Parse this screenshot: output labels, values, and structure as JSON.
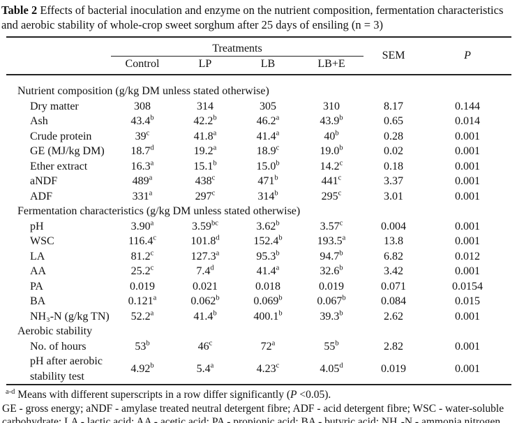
{
  "title": {
    "label": "Table 2",
    "text": " Effects of bacterial inoculation and enzyme on the nutrient composition, fermentation characteristics and aerobic stability of whole-crop sweet sorghum after 25 days of ensiling (n = 3)"
  },
  "table": {
    "group_header": "Treatments",
    "columns": [
      "Control",
      "LP",
      "LB",
      "LB+E"
    ],
    "sem_header": "SEM",
    "p_header": "P",
    "rows": [
      {
        "type": "section",
        "label": "Nutrient composition (g/kg DM unless stated otherwise)"
      },
      {
        "type": "data",
        "label": "Dry matter",
        "values": [
          {
            "v": "308"
          },
          {
            "v": "314"
          },
          {
            "v": "305"
          },
          {
            "v": "310"
          },
          {
            "v": "8.17"
          },
          {
            "v": "0.144"
          }
        ]
      },
      {
        "type": "data",
        "label": "Ash",
        "values": [
          {
            "v": "43.4",
            "s": "b"
          },
          {
            "v": "42.2",
            "s": "b"
          },
          {
            "v": "46.2",
            "s": "a"
          },
          {
            "v": "43.9",
            "s": "b"
          },
          {
            "v": "0.65"
          },
          {
            "v": "0.014"
          }
        ]
      },
      {
        "type": "data",
        "label": "Crude protein",
        "values": [
          {
            "v": "39",
            "s": "c"
          },
          {
            "v": "41.8",
            "s": "a"
          },
          {
            "v": "41.4",
            "s": "a"
          },
          {
            "v": "40",
            "s": "b"
          },
          {
            "v": "0.28"
          },
          {
            "v": "0.001"
          }
        ]
      },
      {
        "type": "data",
        "label": "GE (MJ/kg DM)",
        "values": [
          {
            "v": "18.7",
            "s": "d"
          },
          {
            "v": "19.2",
            "s": "a"
          },
          {
            "v": "18.9",
            "s": "c"
          },
          {
            "v": "19.0",
            "s": "b"
          },
          {
            "v": "0.02"
          },
          {
            "v": "0.001"
          }
        ]
      },
      {
        "type": "data",
        "label": "Ether extract",
        "values": [
          {
            "v": "16.3",
            "s": "a"
          },
          {
            "v": "15.1",
            "s": "b"
          },
          {
            "v": "15.0",
            "s": "b"
          },
          {
            "v": "14.2",
            "s": "c"
          },
          {
            "v": "0.18"
          },
          {
            "v": "0.001"
          }
        ]
      },
      {
        "type": "data",
        "label": "aNDF",
        "values": [
          {
            "v": "489",
            "s": "a"
          },
          {
            "v": "438",
            "s": "c"
          },
          {
            "v": "471",
            "s": "b"
          },
          {
            "v": "441",
            "s": "c"
          },
          {
            "v": "3.37"
          },
          {
            "v": "0.001"
          }
        ]
      },
      {
        "type": "data",
        "label": "ADF",
        "values": [
          {
            "v": "331",
            "s": "a"
          },
          {
            "v": "297",
            "s": "c"
          },
          {
            "v": "314",
            "s": "b"
          },
          {
            "v": "295",
            "s": "c"
          },
          {
            "v": "3.01"
          },
          {
            "v": "0.001"
          }
        ]
      },
      {
        "type": "section",
        "label": "Fermentation characteristics (g/kg DM unless stated otherwise)"
      },
      {
        "type": "data",
        "label": "pH",
        "values": [
          {
            "v": "3.90",
            "s": "a"
          },
          {
            "v": "3.59",
            "s": "bc"
          },
          {
            "v": "3.62",
            "s": "b"
          },
          {
            "v": "3.57",
            "s": "c"
          },
          {
            "v": "0.004"
          },
          {
            "v": "0.001"
          }
        ]
      },
      {
        "type": "data",
        "label": "WSC",
        "values": [
          {
            "v": "116.4",
            "s": "c"
          },
          {
            "v": "101.8",
            "s": "d"
          },
          {
            "v": "152.4",
            "s": "b"
          },
          {
            "v": "193.5",
            "s": "a"
          },
          {
            "v": "13.8"
          },
          {
            "v": "0.001"
          }
        ]
      },
      {
        "type": "data",
        "label": "LA",
        "values": [
          {
            "v": "81.2",
            "s": "c"
          },
          {
            "v": "127.3",
            "s": "a"
          },
          {
            "v": "95.3",
            "s": "b"
          },
          {
            "v": "94.7",
            "s": "b"
          },
          {
            "v": "6.82"
          },
          {
            "v": "0.012"
          }
        ]
      },
      {
        "type": "data",
        "label": "AA",
        "values": [
          {
            "v": "25.2",
            "s": "c"
          },
          {
            "v": "7.4",
            "s": "d"
          },
          {
            "v": "41.4",
            "s": "a"
          },
          {
            "v": "32.6",
            "s": "b"
          },
          {
            "v": "3.42"
          },
          {
            "v": "0.001"
          }
        ]
      },
      {
        "type": "data",
        "label": "PA",
        "values": [
          {
            "v": "0.019"
          },
          {
            "v": "0.021"
          },
          {
            "v": "0.018"
          },
          {
            "v": "0.019"
          },
          {
            "v": "0.071"
          },
          {
            "v": "0.0154"
          }
        ]
      },
      {
        "type": "data",
        "label": "BA",
        "values": [
          {
            "v": "0.121",
            "s": "a"
          },
          {
            "v": "0.062",
            "s": "b"
          },
          {
            "v": "0.069",
            "s": "b"
          },
          {
            "v": "0.067",
            "s": "b"
          },
          {
            "v": "0.084"
          },
          {
            "v": "0.015"
          }
        ]
      },
      {
        "type": "data",
        "label": "NH₃-N (g/kg TN)",
        "values": [
          {
            "v": "52.2",
            "s": "a"
          },
          {
            "v": "41.4",
            "s": "b"
          },
          {
            "v": "400.1",
            "s": "b"
          },
          {
            "v": "39.3",
            "s": "b"
          },
          {
            "v": "2.62"
          },
          {
            "v": "0.001"
          }
        ]
      },
      {
        "type": "section",
        "label": "Aerobic stability"
      },
      {
        "type": "data",
        "label": "No. of hours",
        "values": [
          {
            "v": "53",
            "s": "b"
          },
          {
            "v": "46",
            "s": "c"
          },
          {
            "v": "72",
            "s": "a"
          },
          {
            "v": "55",
            "s": "b"
          },
          {
            "v": "2.82"
          },
          {
            "v": "0.001"
          }
        ]
      },
      {
        "type": "data",
        "label": "pH after aerobic stability test",
        "values": [
          {
            "v": "4.92",
            "s": "b"
          },
          {
            "v": "5.4",
            "s": "a"
          },
          {
            "v": "4.23",
            "s": "c"
          },
          {
            "v": "4.05",
            "s": "d"
          },
          {
            "v": "0.019"
          },
          {
            "v": "0.001"
          }
        ]
      }
    ]
  },
  "footnotes": {
    "note1": {
      "sup": "a-d",
      "text": " Means with different superscripts in a row differ significantly (",
      "italic": "P",
      "tail": " <0.05)."
    },
    "note2": "GE - gross energy; aNDF - amylase treated neutral detergent fibre; ADF - acid detergent fibre; WSC - water-soluble carbohydrate; LA - lactic acid; AA - acetic acid; PA - propionic acid; BA - butyric acid; NH₃-N - ammonia nitrogen."
  }
}
